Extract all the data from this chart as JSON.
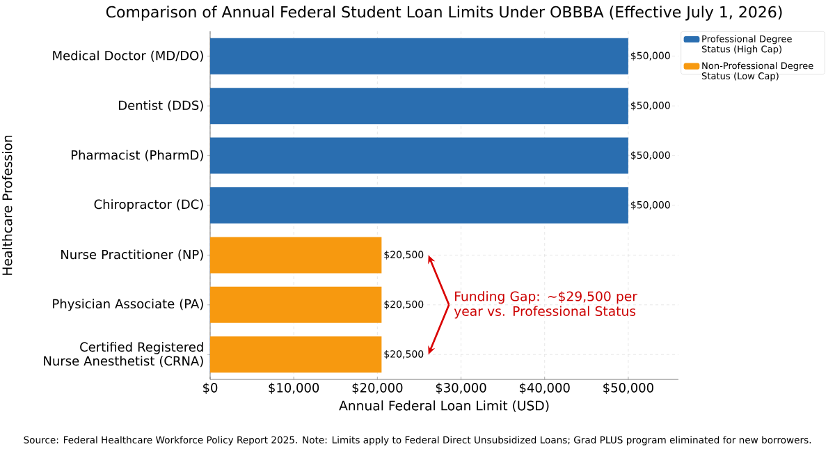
{
  "chart_data": {
    "type": "bar",
    "orientation": "horizontal",
    "title": "Comparison of Annual Federal Student Loan Limits Under OBBBA (Effective July 1, 2026)",
    "xlabel": "Annual Federal Loan Limit (USD)",
    "ylabel": "Healthcare Profession",
    "categories": [
      "Medical Doctor (MD/DO)",
      "Dentist (DDS)",
      "Pharmacist (PharmD)",
      "Chiropractor (DC)",
      "Nurse Practitioner (NP)",
      "Physician Associate (PA)",
      "Certified Registered Nurse Anesthetist (CRNA)"
    ],
    "series": [
      {
        "name": "Professional Degree Status (High Cap)",
        "color": "#2a6eb0",
        "values": [
          50000,
          50000,
          50000,
          50000,
          null,
          null,
          null
        ],
        "value_labels": [
          "$50,000",
          "$50,000",
          "$50,000",
          "$50,000",
          null,
          null,
          null
        ]
      },
      {
        "name": "Non-Professional Degree Status (Low Cap)",
        "color": "#f7990f",
        "values": [
          null,
          null,
          null,
          null,
          20500,
          20500,
          20500
        ],
        "value_labels": [
          null,
          null,
          null,
          null,
          "$20,500",
          "$20,500",
          "$20,500"
        ]
      }
    ],
    "xlim": [
      0,
      56000
    ],
    "xticks": [
      {
        "value": 0,
        "label": "$0"
      },
      {
        "value": 10000,
        "label": "$10,000"
      },
      {
        "value": 20000,
        "label": "$20,000"
      },
      {
        "value": 30000,
        "label": "$30,000"
      },
      {
        "value": 40000,
        "label": "$40,000"
      },
      {
        "value": 50000,
        "label": "$50,000"
      }
    ],
    "grid": true,
    "legend": "top right",
    "annotations": [
      "Funding Gap: ~$29,500 per year vs. Professional Status",
      "Source: Federal Healthcare Workforce Policy Report 2025. Note: Limits apply to Federal Direct Unsubsidized Loans; Grad PLUS program eliminated for new borrowers."
    ]
  }
}
